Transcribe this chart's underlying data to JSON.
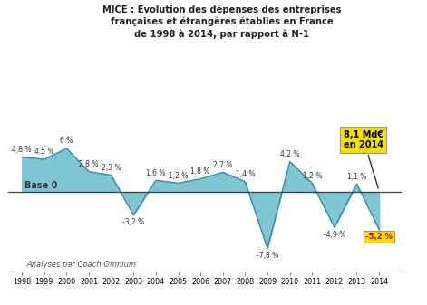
{
  "years": [
    1998,
    1999,
    2000,
    2001,
    2002,
    2003,
    2004,
    2005,
    2006,
    2007,
    2008,
    2009,
    2010,
    2011,
    2012,
    2013,
    2014
  ],
  "values": [
    4.8,
    4.5,
    6.0,
    2.8,
    2.3,
    -3.2,
    1.6,
    1.2,
    1.8,
    2.7,
    1.4,
    -7.8,
    4.2,
    1.2,
    -4.9,
    1.1,
    -5.2
  ],
  "labels": [
    "4,8 %",
    "4,5 %",
    "6 %",
    "2,8 %",
    "2,3 %",
    "-3,2 %",
    "1,6 %",
    "1,2 %",
    "1,8 %",
    "2,7 %",
    "1,4 %",
    "-7,8 %",
    "4,2 %",
    "1,2 %",
    "-4,9 %",
    "1,1 %",
    "-5,2 %"
  ],
  "label_above": [
    true,
    true,
    true,
    true,
    true,
    false,
    true,
    true,
    true,
    true,
    true,
    false,
    true,
    true,
    false,
    true,
    false
  ],
  "fill_color": "#72bfd0",
  "line_color": "#3a8fa5",
  "title_line1": "MICE : Evolution des dépenses des entreprises",
  "title_line2": "françaises et étrangères établies en France",
  "title_line3": "de 1998 à 2014, par rapport à N-1",
  "base_label": "Base 0",
  "annotation_box_text": "8,1 Md€\nen 2014",
  "annotation_box_color": "#f5e000",
  "last_label_color": "#cc0000",
  "last_label_bg": "#f5e000",
  "footer_text": "Analyses par Coach Omnium",
  "bg_color": "#ffffff",
  "ylim_min": -11.0,
  "ylim_max": 10.5
}
